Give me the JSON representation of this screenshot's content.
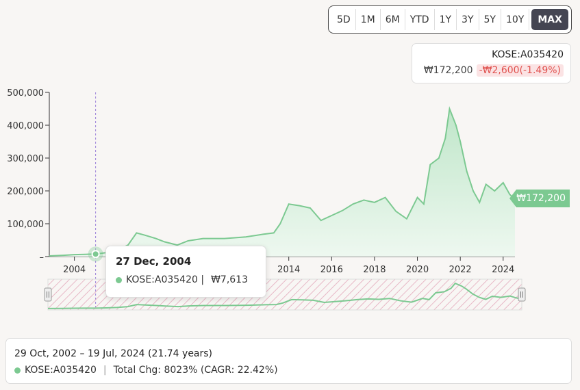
{
  "range_buttons": [
    {
      "label": "5D",
      "active": false
    },
    {
      "label": "1M",
      "active": false
    },
    {
      "label": "6M",
      "active": false
    },
    {
      "label": "YTD",
      "active": false
    },
    {
      "label": "1Y",
      "active": false
    },
    {
      "label": "3Y",
      "active": false
    },
    {
      "label": "5Y",
      "active": false
    },
    {
      "label": "10Y",
      "active": false
    },
    {
      "label": "MAX",
      "active": true
    }
  ],
  "quote": {
    "ticker": "KOSE:A035420",
    "price": "₩172,200",
    "change": "-₩2,600(-1.49%)"
  },
  "tooltip": {
    "date": "27 Dec, 2004",
    "series": "KOSE:A035420 |",
    "value": "₩7,613"
  },
  "last_price_flag": "₩172,200",
  "summary": {
    "range": "29 Oct, 2002 – 19 Jul, 2024 (21.74 years)",
    "series": "KOSE:A035420",
    "change": "Total Chg: 8023% (CAGR: 22.42%)"
  },
  "colors": {
    "line": "#7cc991",
    "fill_top": "#bfe6c9",
    "fill_bottom": "#eef8f0",
    "negative": "#e0524f",
    "brush_hatch": "#e7b8c6"
  },
  "chart_data": {
    "type": "area",
    "series": [
      {
        "name": "KOSE:A035420",
        "points": [
          [
            2002.83,
            2100
          ],
          [
            2003.5,
            4000
          ],
          [
            2004.0,
            6000
          ],
          [
            2004.5,
            6800
          ],
          [
            2004.99,
            7613
          ],
          [
            2005.5,
            12000
          ],
          [
            2006.0,
            20000
          ],
          [
            2006.5,
            35000
          ],
          [
            2006.9,
            72000
          ],
          [
            2007.3,
            65000
          ],
          [
            2007.8,
            55000
          ],
          [
            2008.2,
            45000
          ],
          [
            2008.8,
            35000
          ],
          [
            2009.3,
            48000
          ],
          [
            2010.0,
            55000
          ],
          [
            2011.0,
            55000
          ],
          [
            2012.0,
            60000
          ],
          [
            2012.8,
            68000
          ],
          [
            2013.3,
            72000
          ],
          [
            2013.6,
            100000
          ],
          [
            2014.0,
            160000
          ],
          [
            2014.5,
            155000
          ],
          [
            2015.0,
            148000
          ],
          [
            2015.5,
            110000
          ],
          [
            2016.0,
            125000
          ],
          [
            2016.5,
            140000
          ],
          [
            2017.0,
            160000
          ],
          [
            2017.5,
            172000
          ],
          [
            2018.0,
            165000
          ],
          [
            2018.5,
            180000
          ],
          [
            2019.0,
            138000
          ],
          [
            2019.5,
            115000
          ],
          [
            2020.0,
            180000
          ],
          [
            2020.3,
            160000
          ],
          [
            2020.6,
            280000
          ],
          [
            2021.0,
            300000
          ],
          [
            2021.3,
            360000
          ],
          [
            2021.5,
            450000
          ],
          [
            2021.8,
            400000
          ],
          [
            2022.0,
            350000
          ],
          [
            2022.3,
            260000
          ],
          [
            2022.6,
            200000
          ],
          [
            2022.9,
            165000
          ],
          [
            2023.2,
            220000
          ],
          [
            2023.6,
            200000
          ],
          [
            2024.0,
            225000
          ],
          [
            2024.3,
            190000
          ],
          [
            2024.55,
            172200
          ]
        ]
      }
    ],
    "y_ticks": [
      "500,000",
      "400,000",
      "300,000",
      "200,000",
      "100,000",
      "–"
    ],
    "x_ticks": [
      "2004",
      "2014",
      "2016",
      "2018",
      "2020",
      "2022",
      "2024"
    ],
    "ylim": [
      0,
      500000
    ],
    "xlim": [
      2002.83,
      2024.55
    ],
    "highlight_date": 2004.99,
    "highlight_value": 7613,
    "grid": false
  }
}
